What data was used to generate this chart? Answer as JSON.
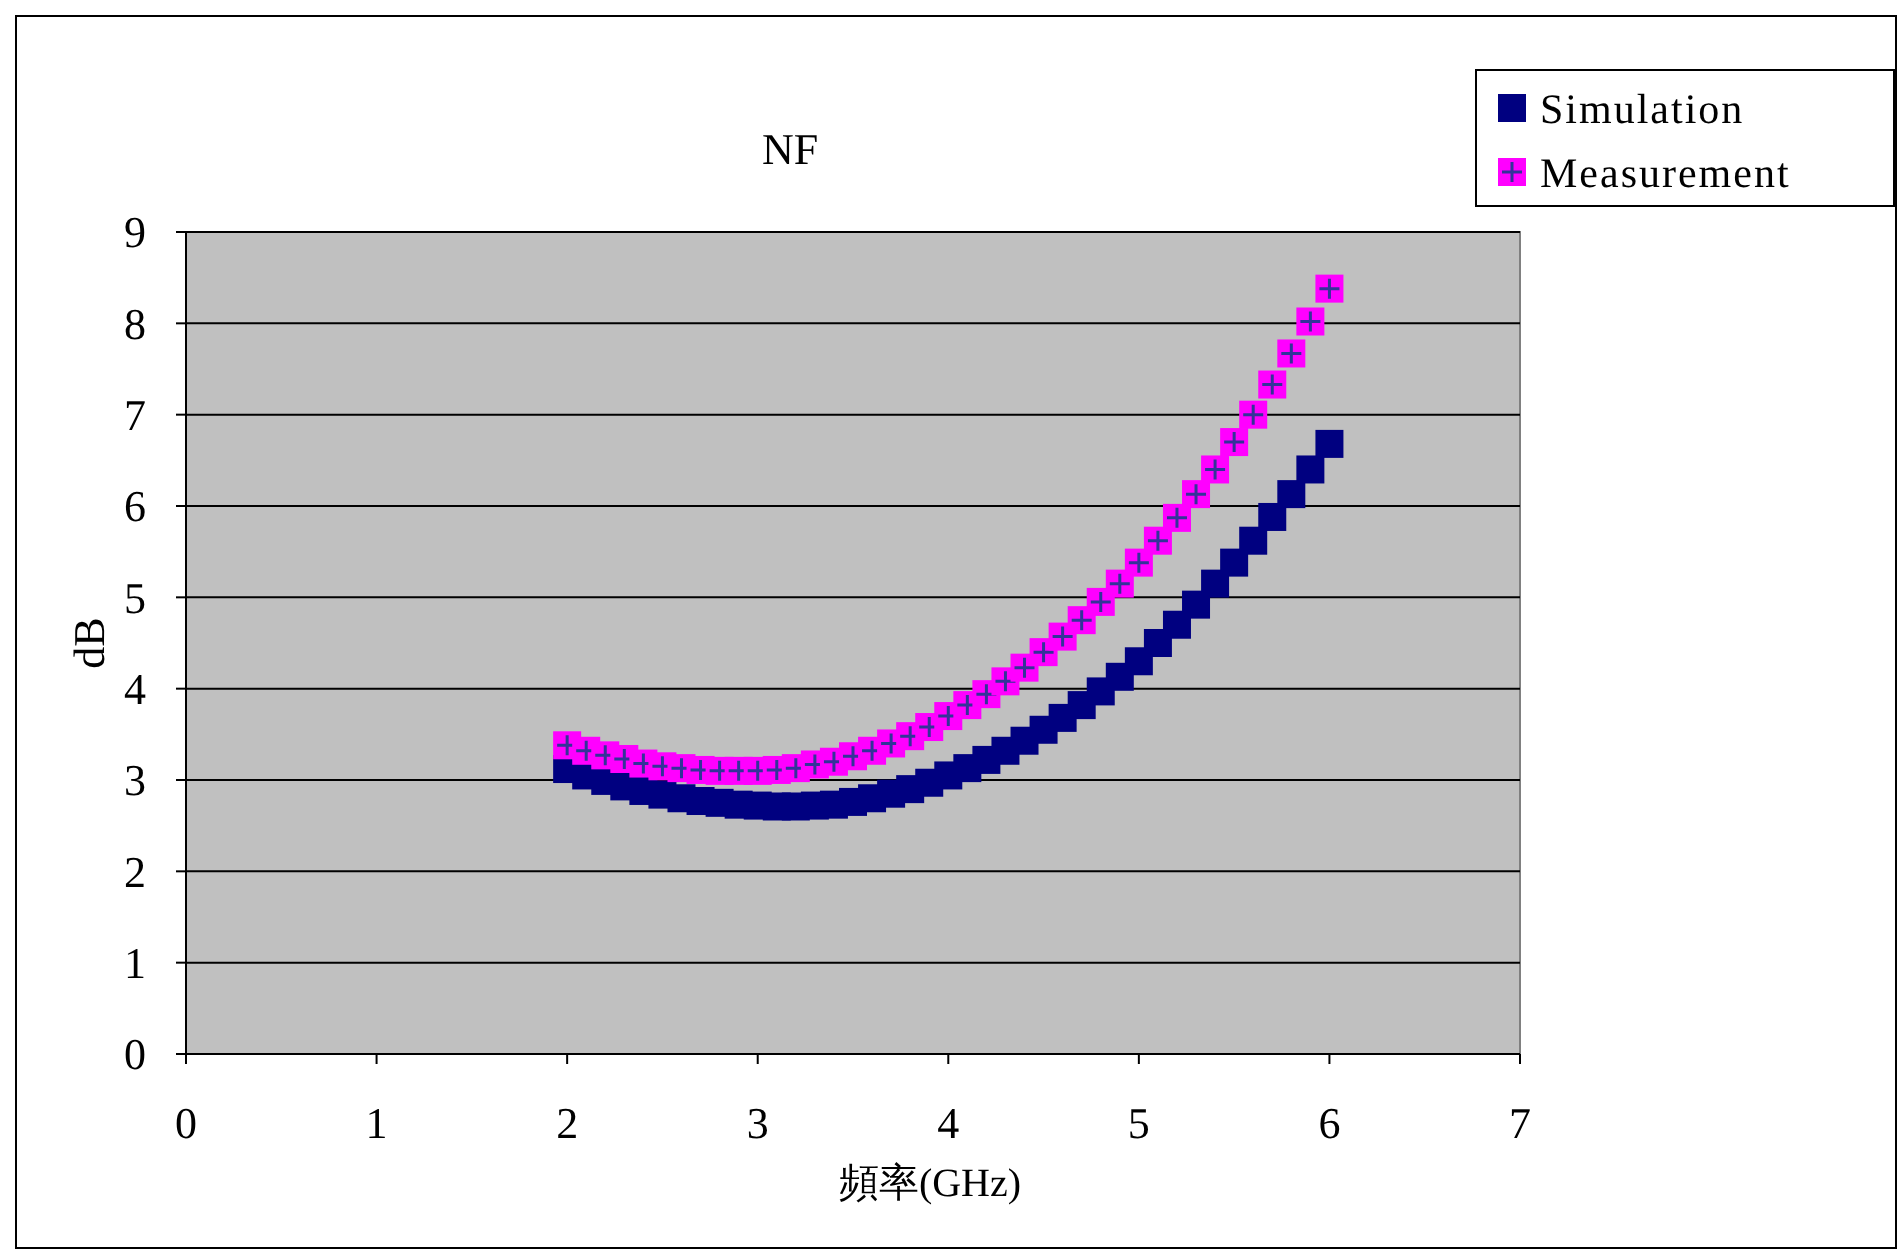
{
  "chart_data": {
    "type": "scatter",
    "title": "NF",
    "xlabel": "頻率(GHz)",
    "ylabel": "dB",
    "x": [
      2.0,
      2.1,
      2.2,
      2.3,
      2.4,
      2.5,
      2.6,
      2.7,
      2.8,
      2.9,
      3.0,
      3.1,
      3.2,
      3.3,
      3.4,
      3.5,
      3.6,
      3.7,
      3.8,
      3.9,
      4.0,
      4.1,
      4.2,
      4.3,
      4.4,
      4.5,
      4.6,
      4.7,
      4.8,
      4.9,
      5.0,
      5.1,
      5.2,
      5.3,
      5.4,
      5.5,
      5.6,
      5.7,
      5.8,
      5.9,
      6.0
    ],
    "series": [
      {
        "name": "Simulation",
        "color": "#000080",
        "values": [
          3.12,
          3.05,
          2.99,
          2.93,
          2.88,
          2.84,
          2.8,
          2.77,
          2.75,
          2.73,
          2.72,
          2.71,
          2.71,
          2.72,
          2.73,
          2.76,
          2.8,
          2.85,
          2.9,
          2.97,
          3.05,
          3.13,
          3.22,
          3.32,
          3.43,
          3.55,
          3.68,
          3.82,
          3.97,
          4.13,
          4.3,
          4.5,
          4.7,
          4.92,
          5.15,
          5.38,
          5.62,
          5.88,
          6.13,
          6.4,
          6.68
        ]
      },
      {
        "name": "Measurement",
        "color": "#ff00ff",
        "values": [
          3.38,
          3.32,
          3.27,
          3.23,
          3.18,
          3.15,
          3.13,
          3.11,
          3.1,
          3.1,
          3.1,
          3.11,
          3.13,
          3.17,
          3.2,
          3.26,
          3.32,
          3.4,
          3.48,
          3.58,
          3.7,
          3.82,
          3.94,
          4.08,
          4.23,
          4.4,
          4.57,
          4.75,
          4.95,
          5.15,
          5.38,
          5.62,
          5.87,
          6.13,
          6.4,
          6.7,
          7.0,
          7.33,
          7.67,
          8.02,
          8.38
        ]
      }
    ],
    "xlim": [
      0,
      7
    ],
    "xticks": [
      0,
      1,
      2,
      3,
      4,
      5,
      6,
      7
    ],
    "ylim": [
      0,
      9
    ],
    "yticks": [
      0,
      1,
      2,
      3,
      4,
      5,
      6,
      7,
      8,
      9
    ],
    "grid": "y",
    "legend": "top right",
    "marker": "square"
  }
}
